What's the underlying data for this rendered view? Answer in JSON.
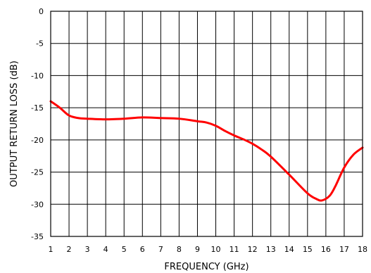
{
  "chart_data": {
    "type": "line",
    "xlabel": "FREQUENCY (GHz)",
    "ylabel": "OUTPUT RETURN LOSS (dB)",
    "xlim": [
      1,
      18
    ],
    "ylim": [
      -35,
      0
    ],
    "x_ticks": [
      1,
      2,
      3,
      4,
      5,
      6,
      7,
      8,
      9,
      10,
      11,
      12,
      13,
      14,
      15,
      16,
      17,
      18
    ],
    "y_ticks": [
      0,
      -5,
      -10,
      -15,
      -20,
      -25,
      -30,
      -35
    ],
    "grid": true,
    "colors": {
      "series": "#ff0000",
      "grid": "#000000"
    },
    "series": [
      {
        "x": [
          1,
          1.5,
          2,
          2.5,
          3,
          4,
          5,
          6,
          7,
          8,
          9,
          9.5,
          10,
          10.5,
          11,
          11.5,
          12,
          12.5,
          13,
          14,
          15,
          15.5,
          15.8,
          16.2,
          16.5,
          17,
          17.5,
          18
        ],
        "y": [
          -14.0,
          -15.0,
          -16.2,
          -16.6,
          -16.7,
          -16.8,
          -16.7,
          -16.5,
          -16.6,
          -16.7,
          -17.1,
          -17.3,
          -17.8,
          -18.6,
          -19.3,
          -19.9,
          -20.6,
          -21.5,
          -22.6,
          -25.4,
          -28.3,
          -29.2,
          -29.4,
          -28.7,
          -27.3,
          -24.3,
          -22.3,
          -21.2
        ]
      }
    ]
  }
}
